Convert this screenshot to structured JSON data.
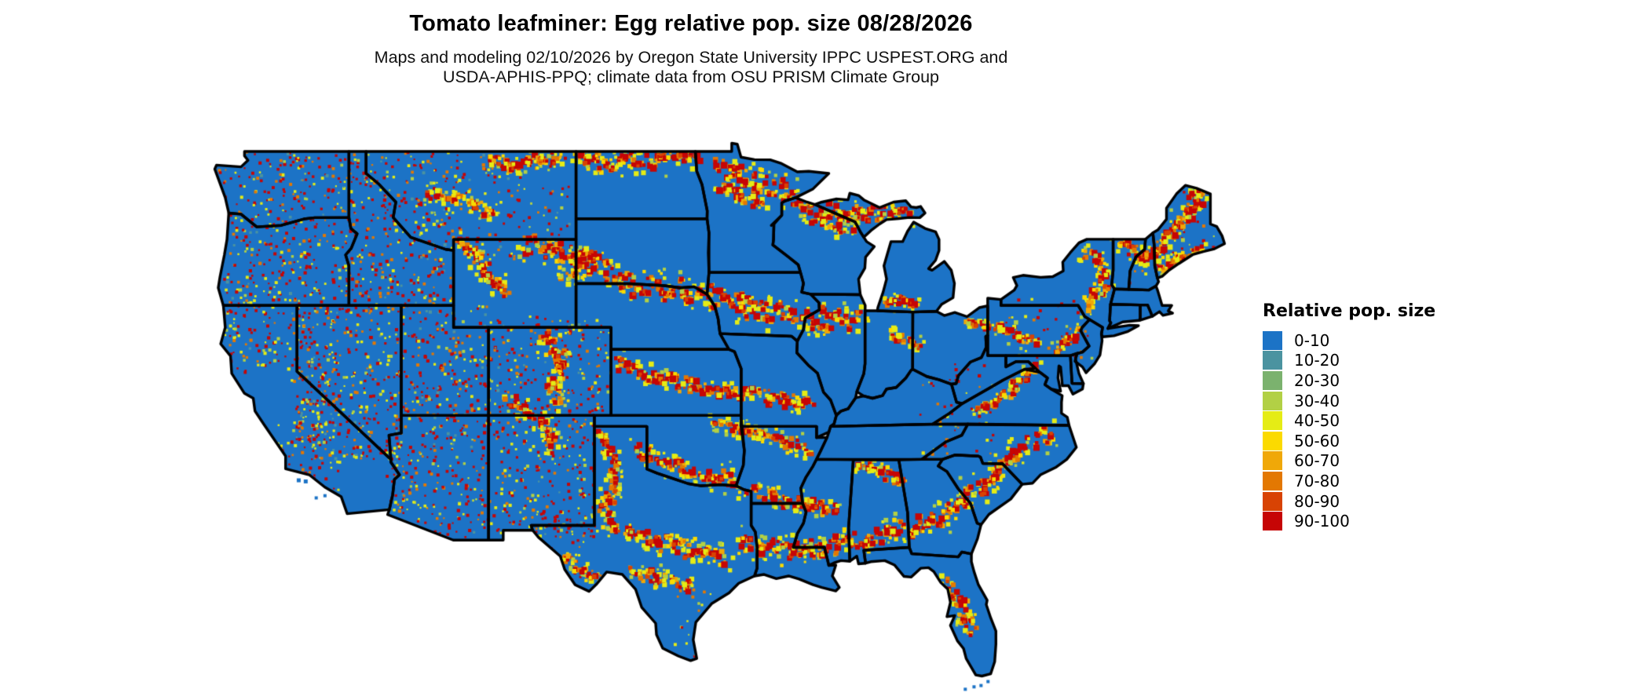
{
  "title": "Tomato leafminer: Egg relative pop. size 08/28/2026",
  "subtitle_line1": "Maps and modeling 02/10/2026 by Oregon State University IPPC USPEST.ORG and",
  "subtitle_line2": "USDA-APHIS-PPQ; climate data from OSU PRISM Climate Group",
  "legend": {
    "title": "Relative pop. size",
    "entries": [
      {
        "label": "0-10",
        "color": "#1c73c6"
      },
      {
        "label": "10-20",
        "color": "#4b93a0"
      },
      {
        "label": "20-30",
        "color": "#7bb26e"
      },
      {
        "label": "30-40",
        "color": "#b2d045"
      },
      {
        "label": "40-50",
        "color": "#e5ec15"
      },
      {
        "label": "50-60",
        "color": "#fbda00"
      },
      {
        "label": "60-70",
        "color": "#f0a808"
      },
      {
        "label": "70-80",
        "color": "#e37802"
      },
      {
        "label": "80-90",
        "color": "#d84304"
      },
      {
        "label": "90-100",
        "color": "#c60505"
      }
    ]
  },
  "map": {
    "base_color": "#1c73c6",
    "border_color": "#000000",
    "water_color": "#ffffff"
  }
}
